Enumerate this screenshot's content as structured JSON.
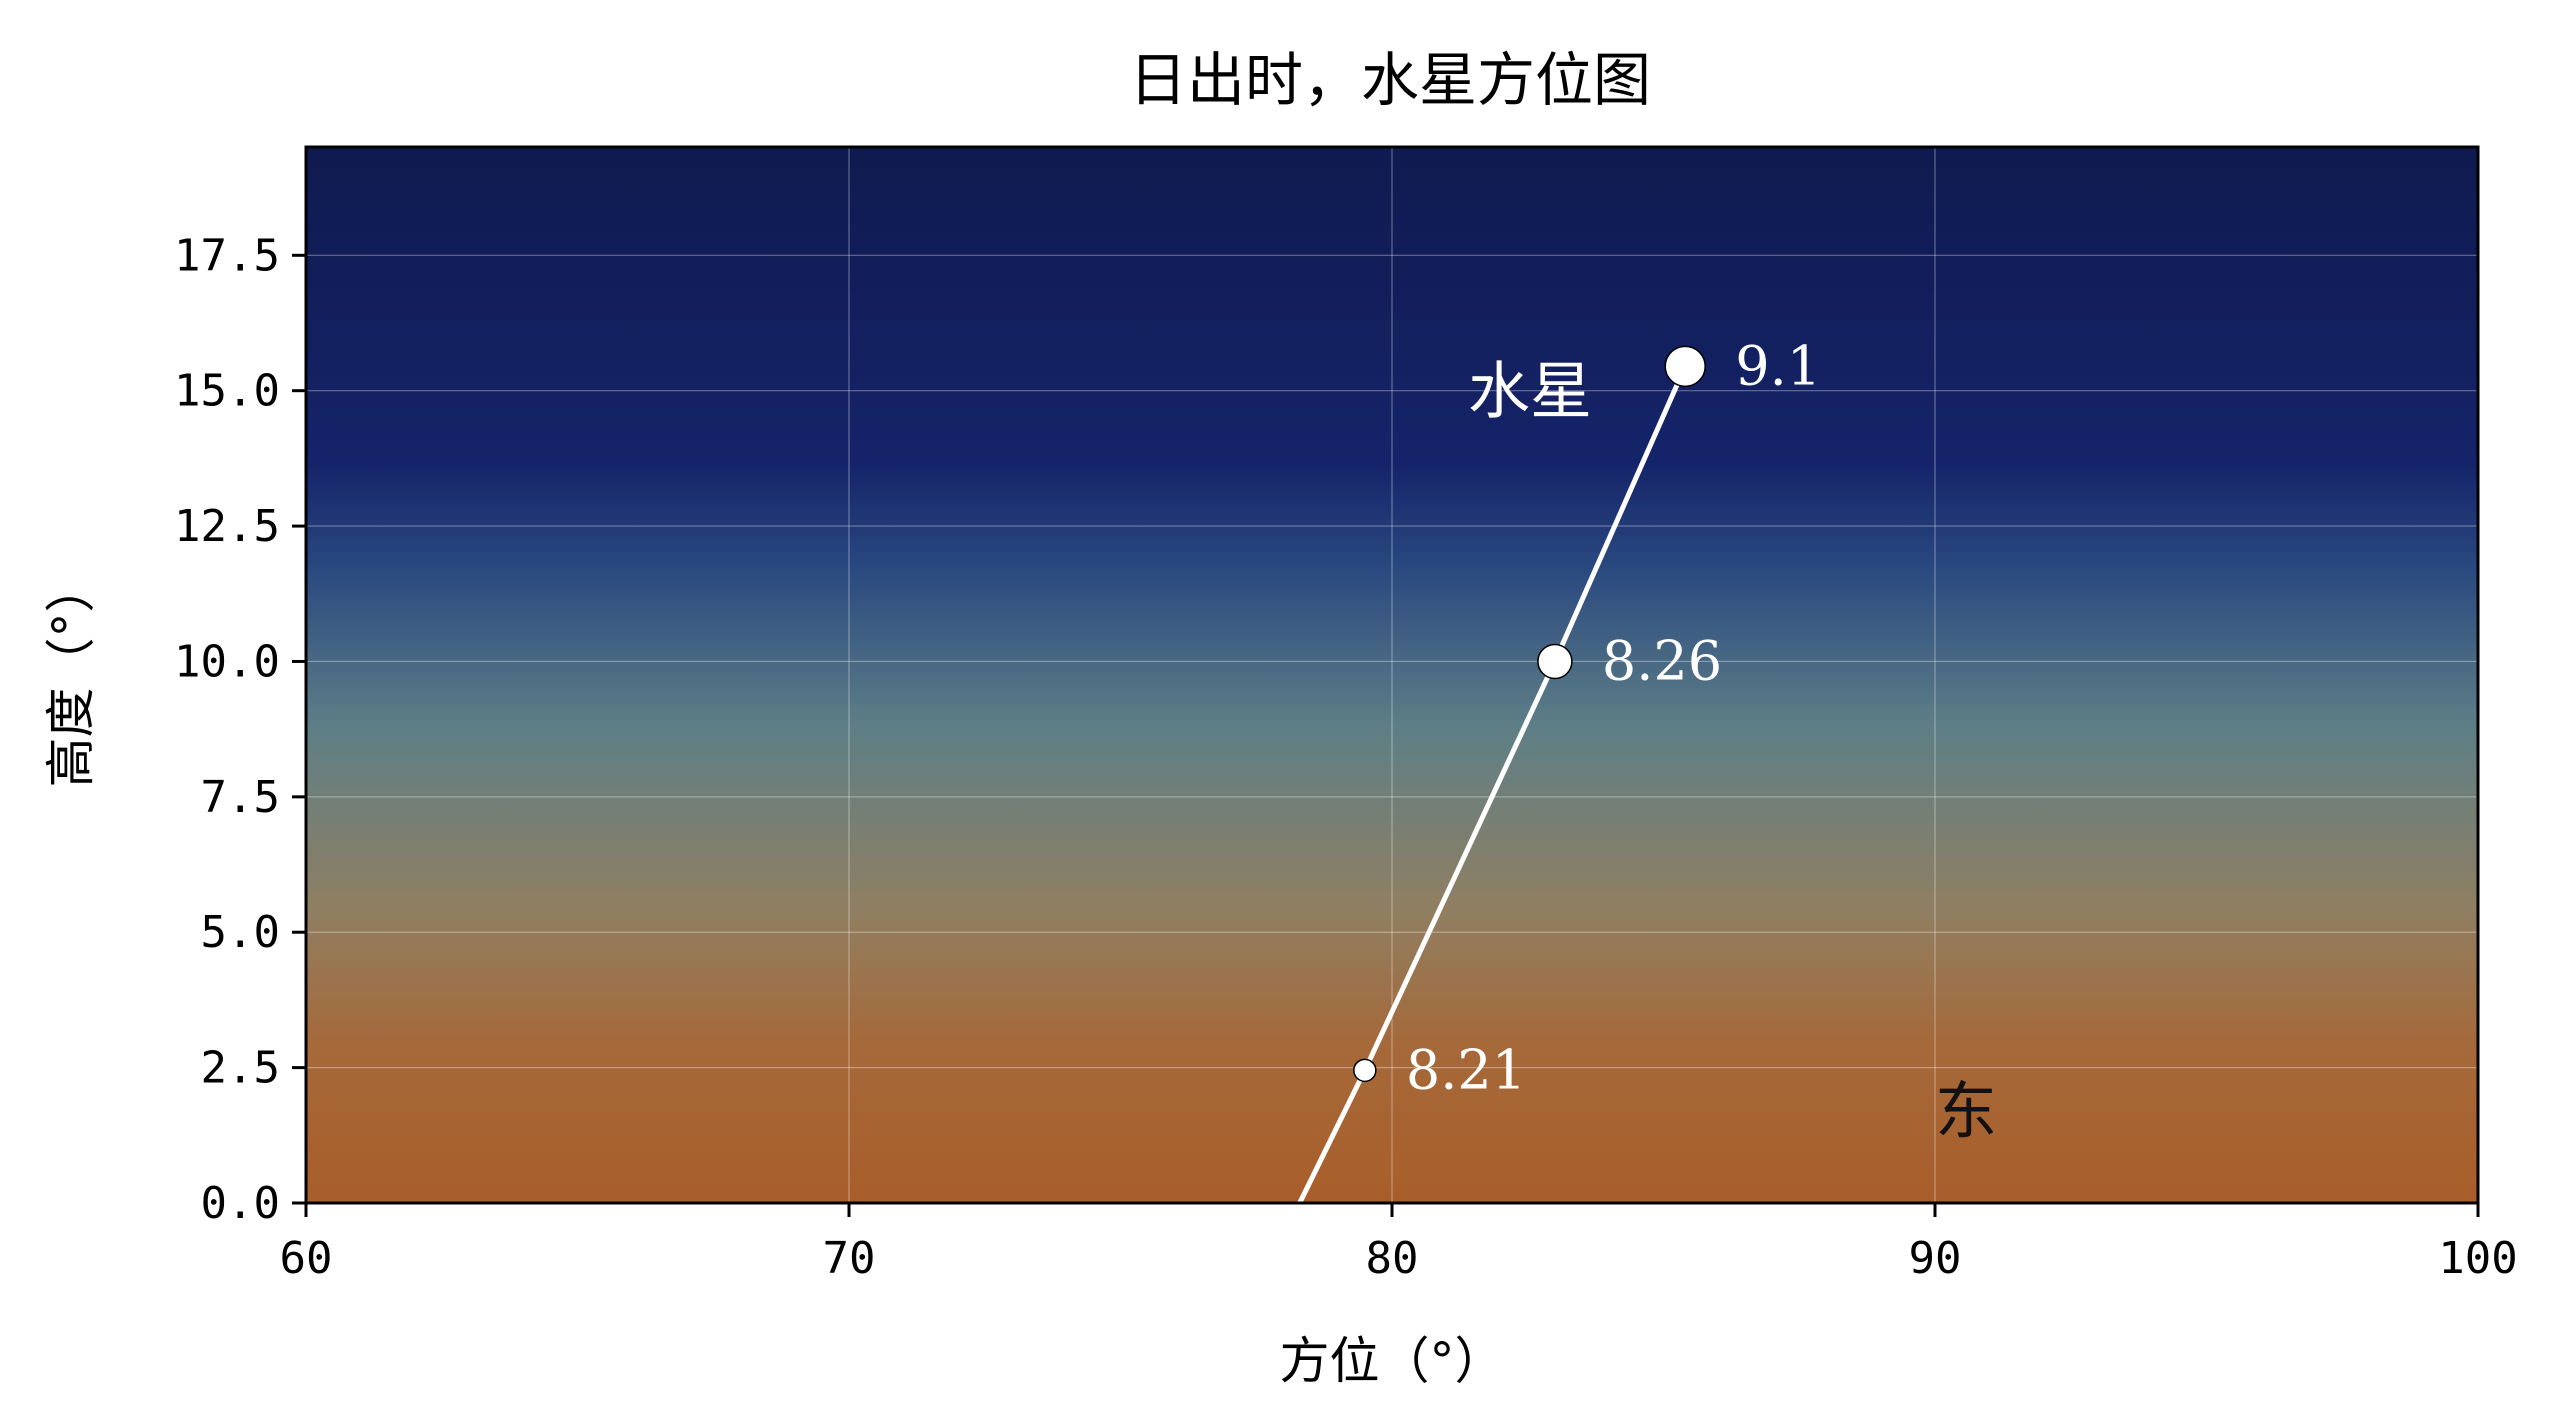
{
  "chart_data": {
    "type": "line",
    "title": "日出时，水星方位图",
    "xlabel": "方位（°）",
    "ylabel": "高度（°）",
    "xlim": [
      60,
      100
    ],
    "ylim": [
      0,
      19.5
    ],
    "xticks": [
      60,
      70,
      80,
      90,
      100
    ],
    "xtick_labels": [
      "60",
      "70",
      "80",
      "90",
      "100"
    ],
    "yticks": [
      0,
      2.5,
      5,
      7.5,
      10,
      12.5,
      15,
      17.5
    ],
    "ytick_labels": [
      "0.0",
      "2.5",
      "5.0",
      "7.5",
      "10.0",
      "12.5",
      "15.0",
      "17.5"
    ],
    "grid": true,
    "background": "sky gradient from dark navy (top) to orange-brown (bottom)",
    "series": [
      {
        "name": "水星",
        "color": "#ffffff",
        "x": [
          78.3,
          79.5,
          83.0,
          85.4
        ],
        "y": [
          0.0,
          2.45,
          10.0,
          15.45
        ]
      }
    ],
    "points": [
      {
        "x": 79.5,
        "y": 2.45,
        "label": "8.21",
        "size": "small"
      },
      {
        "x": 83.0,
        "y": 10.0,
        "label": "8.26",
        "size": "medium"
      },
      {
        "x": 85.4,
        "y": 15.45,
        "label": "9.1",
        "size": "large"
      }
    ],
    "annotations": [
      {
        "text": "水星",
        "x": 81.4,
        "y": 14.6,
        "color": "#ffffff"
      },
      {
        "text": "东",
        "x": 90.0,
        "y": 1.3,
        "color": "#111111"
      }
    ],
    "colors": {
      "sky_top": "#0f1a4f",
      "sky_mid": "#5e7f86",
      "sky_bottom": "#a85e2a",
      "line": "#ffffff",
      "grid": "#ffffff"
    }
  }
}
